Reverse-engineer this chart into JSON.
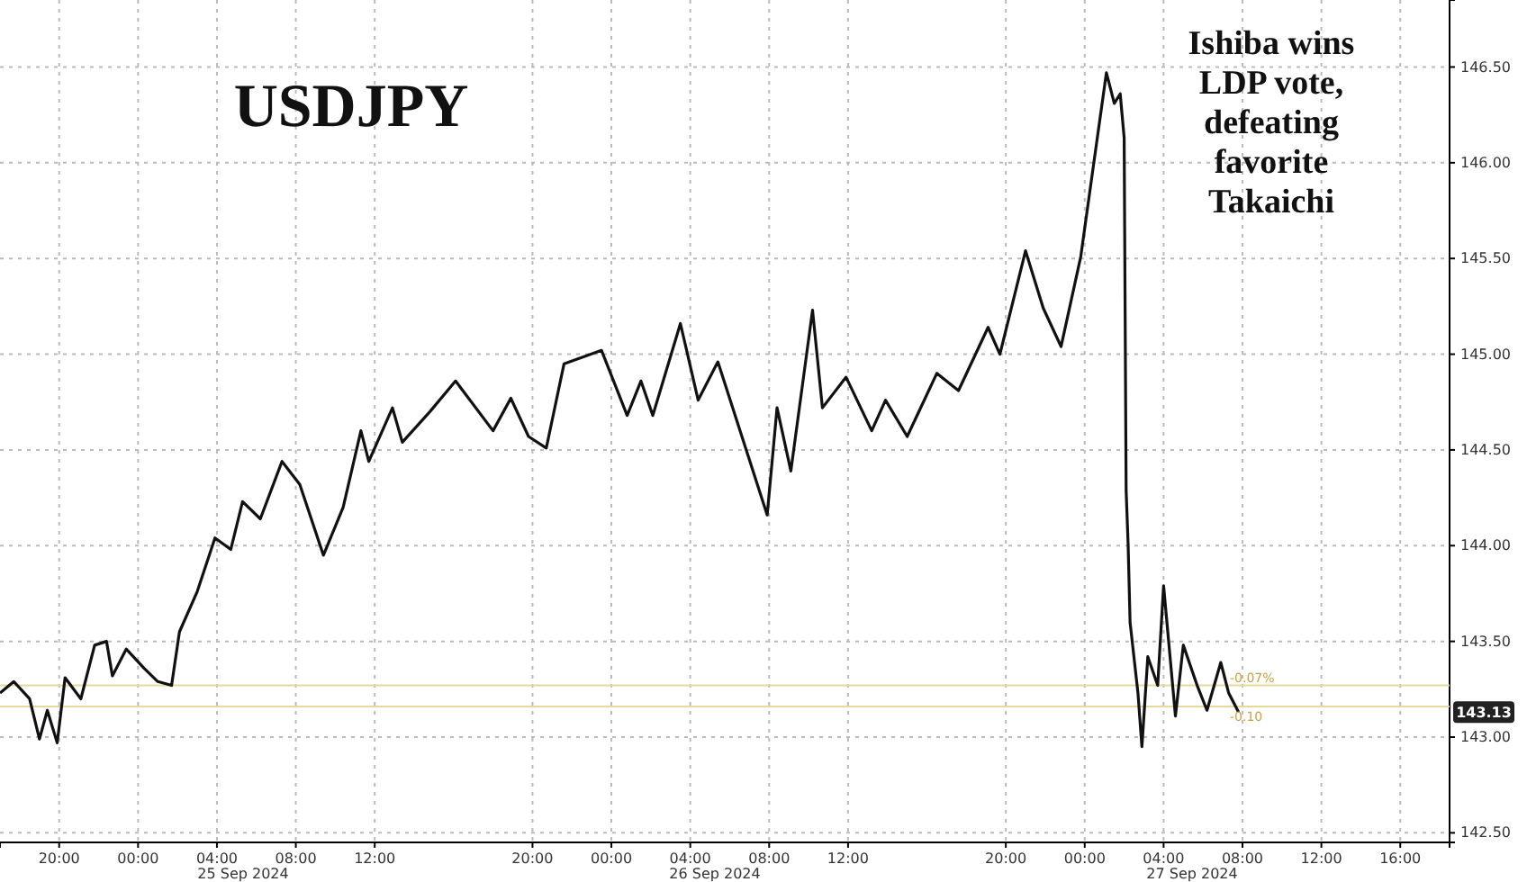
{
  "chart_data": {
    "type": "line",
    "title": "USDJPY",
    "annotations": [
      "Ishiba wins LDP vote, defeating favorite Takaichi",
      "25 Sep 2024",
      "26 Sep 2024",
      "27 Sep 2024",
      {
        "text": "143.13",
        "y": 143.13
      },
      {
        "text": "-0.07%",
        "y": 143.27
      },
      {
        "text": "-0.10",
        "y": 143.16
      }
    ],
    "x": [
      "2024-09-24T17:00",
      "2024-09-24T17:42",
      "2024-09-24T18:30",
      "2024-09-24T19:00",
      "2024-09-24T19:24",
      "2024-09-24T19:54",
      "2024-09-24T20:18",
      "2024-09-24T21:06",
      "2024-09-24T21:48",
      "2024-09-24T22:24",
      "2024-09-24T22:42",
      "2024-09-24T23:24",
      "2024-09-25T00:18",
      "2024-09-25T01:00",
      "2024-09-25T01:42",
      "2024-09-25T02:06",
      "2024-09-25T03:00",
      "2024-09-25T03:54",
      "2024-09-25T04:42",
      "2024-09-25T05:18",
      "2024-09-25T06:12",
      "2024-09-25T07:18",
      "2024-09-25T08:12",
      "2024-09-25T09:24",
      "2024-09-25T10:24",
      "2024-09-25T11:18",
      "2024-09-25T11:42",
      "2024-09-25T12:54",
      "2024-09-25T13:24",
      "2024-09-25T14:48",
      "2024-09-25T16:06",
      "2024-09-25T18:00",
      "2024-09-25T18:54",
      "2024-09-25T19:48",
      "2024-09-25T20:42",
      "2024-09-25T21:36",
      "2024-09-25T23:30",
      "2024-09-26T00:48",
      "2024-09-26T01:30",
      "2024-09-26T02:06",
      "2024-09-26T03:30",
      "2024-09-26T04:24",
      "2024-09-26T05:24",
      "2024-09-26T07:54",
      "2024-09-26T08:24",
      "2024-09-26T09:06",
      "2024-09-26T10:12",
      "2024-09-26T10:42",
      "2024-09-26T11:54",
      "2024-09-26T13:12",
      "2024-09-26T13:54",
      "2024-09-26T15:00",
      "2024-09-26T16:30",
      "2024-09-26T17:36",
      "2024-09-26T19:06",
      "2024-09-26T19:42",
      "2024-09-26T21:00",
      "2024-09-26T21:54",
      "2024-09-26T22:48",
      "2024-09-26T23:48",
      "2024-09-27T00:18",
      "2024-09-27T01:06",
      "2024-09-27T01:30",
      "2024-09-27T01:48",
      "2024-09-27T02:00",
      "2024-09-27T02:06",
      "2024-09-27T02:12",
      "2024-09-27T02:18",
      "2024-09-27T02:42",
      "2024-09-27T02:54",
      "2024-09-27T03:12",
      "2024-09-27T03:42",
      "2024-09-27T04:00",
      "2024-09-27T04:36",
      "2024-09-27T05:00",
      "2024-09-27T05:42",
      "2024-09-27T06:12",
      "2024-09-27T06:54",
      "2024-09-27T07:18",
      "2024-09-27T07:48"
    ],
    "series": [
      {
        "color": "#111111",
        "values": [
          143.23,
          143.29,
          143.2,
          142.99,
          143.14,
          142.97,
          143.31,
          143.2,
          143.48,
          143.5,
          143.32,
          143.46,
          143.36,
          143.29,
          143.27,
          143.55,
          143.76,
          144.04,
          143.98,
          144.23,
          144.14,
          144.44,
          144.32,
          143.95,
          144.2,
          144.6,
          144.44,
          144.72,
          144.54,
          144.7,
          144.86,
          144.6,
          144.77,
          144.57,
          144.51,
          144.95,
          145.02,
          144.68,
          144.86,
          144.68,
          145.16,
          144.76,
          144.96,
          144.16,
          144.72,
          144.39,
          145.23,
          144.72,
          144.88,
          144.6,
          144.76,
          144.57,
          144.9,
          144.81,
          145.14,
          145.0,
          145.54,
          145.24,
          145.04,
          145.51,
          145.88,
          146.47,
          146.31,
          146.36,
          146.13,
          144.29,
          144.01,
          143.6,
          143.23,
          142.95,
          143.42,
          143.27,
          143.79,
          143.11,
          143.48,
          143.27,
          143.14,
          143.39,
          143.23,
          143.13
        ]
      }
    ],
    "xlim": [
      "2024-09-24T17:00",
      "2024-09-27T18:30"
    ],
    "xticks": [
      {
        "value": "2024-09-24T20:00",
        "label": "20:00"
      },
      {
        "value": "2024-09-25T00:00",
        "label": "00:00"
      },
      {
        "value": "2024-09-25T04:00",
        "label": "04:00"
      },
      {
        "value": "2024-09-25T08:00",
        "label": "08:00"
      },
      {
        "value": "2024-09-25T12:00",
        "label": "12:00"
      },
      {
        "value": "2024-09-25T20:00",
        "label": "20:00"
      },
      {
        "value": "2024-09-26T00:00",
        "label": "00:00"
      },
      {
        "value": "2024-09-26T04:00",
        "label": "04:00"
      },
      {
        "value": "2024-09-26T08:00",
        "label": "08:00"
      },
      {
        "value": "2024-09-26T12:00",
        "label": "12:00"
      },
      {
        "value": "2024-09-26T20:00",
        "label": "20:00"
      },
      {
        "value": "2024-09-27T00:00",
        "label": "00:00"
      },
      {
        "value": "2024-09-27T04:00",
        "label": "04:00"
      },
      {
        "value": "2024-09-27T08:00",
        "label": "08:00"
      },
      {
        "value": "2024-09-27T12:00",
        "label": "12:00"
      },
      {
        "value": "2024-09-27T16:00",
        "label": "16:00"
      }
    ],
    "ylim": [
      142.45,
      146.85
    ],
    "yticks": [
      {
        "value": 142.5,
        "label": "142.50"
      },
      {
        "value": 143,
        "label": "143.00"
      },
      {
        "value": 143.5,
        "label": "143.50"
      },
      {
        "value": 144,
        "label": "144.00"
      },
      {
        "value": 144.5,
        "label": "144.50"
      },
      {
        "value": 145,
        "label": "145.00"
      },
      {
        "value": 145.5,
        "label": "145.50"
      },
      {
        "value": 146,
        "label": "146.00"
      },
      {
        "value": 146.5,
        "label": "146.50"
      }
    ],
    "ref_lines": [
      {
        "axis": "y",
        "value": 143.27,
        "color": "#e6da9a"
      },
      {
        "axis": "y",
        "value": 143.16,
        "color": "#e6da9a"
      }
    ],
    "grid": true,
    "line_style": "solid",
    "marker": "none"
  }
}
